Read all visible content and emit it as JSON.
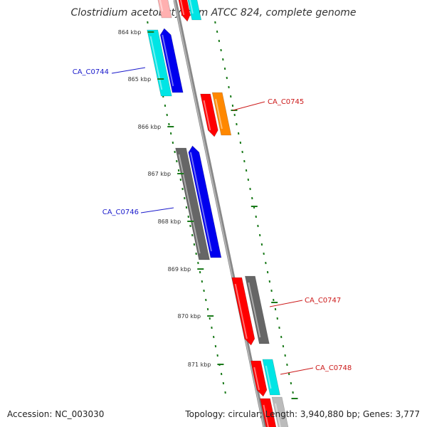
{
  "title": "Clostridium acetobutylicum ATCC 824, complete genome",
  "footer": {
    "accession": "Accession: NC_003030",
    "topology": "Topology: circular; Length: 3,940,880 bp; Genes: 3,777"
  },
  "colors": {
    "backbone": "#888888",
    "tick": "#1a7a1a",
    "label_forward": "#1a1acc",
    "label_reverse": "#cc1a1a"
  },
  "ticks": [
    {
      "label": "864 kbp"
    },
    {
      "label": "865 kbp"
    },
    {
      "label": "866 kbp"
    },
    {
      "label": "867 kbp"
    },
    {
      "label": "868 kbp"
    },
    {
      "label": "869 kbp"
    },
    {
      "label": "870 kbp"
    },
    {
      "label": "871 kbp"
    }
  ],
  "genes": [
    {
      "name": "CA_C0744",
      "strand": "forward"
    },
    {
      "name": "CA_C0745",
      "strand": "reverse"
    },
    {
      "name": "CA_C0746",
      "strand": "forward"
    },
    {
      "name": "CA_C0747",
      "strand": "reverse"
    },
    {
      "name": "CA_C0748",
      "strand": "reverse"
    }
  ]
}
